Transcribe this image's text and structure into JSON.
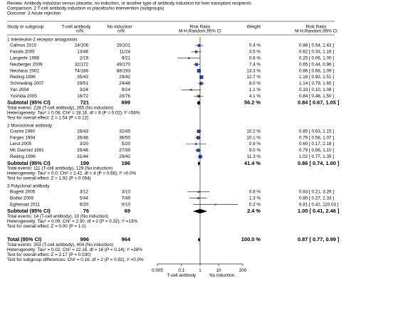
{
  "chart_data": {
    "type": "forest",
    "review": "Review:  Antibody induction versus placebo, no induction, or another type of antibody induction for liver transplant recipients",
    "comparison": "Comparison:  2 T-cell antibody induction vs placebo/no intervention (subgroups)",
    "outcome": "Outcome:  3 Acute rejection",
    "columns": {
      "study": "Study or subgroup",
      "group1": "T-cell antibody",
      "group1_sub": "n/N",
      "group2": "No induction",
      "group2_sub": "n/N",
      "effect": "Risk Ratio",
      "effect_sub": "M-H,Random,95% CI",
      "weight": "Weight",
      "effect2": "Risk Ratio",
      "effect2_sub": "M-H,Random,95% CI"
    },
    "subgroups": [
      {
        "name": "1 Interleukin-2 receptor antagonists",
        "studies": [
          {
            "name": "Calmus 2010",
            "t": "24/106",
            "c": "26/101",
            "weight": 5.4,
            "weight_label": "5.4 %",
            "rr": 0.88,
            "lo": 0.54,
            "hi": 1.43,
            "ci_label": "0.88 [ 0.54, 1.43 ]"
          },
          {
            "name": "Fasola 2005",
            "t": "13/46",
            "c": "11/24",
            "weight": 3.5,
            "weight_label": "3.5 %",
            "rr": 0.62,
            "lo": 0.33,
            "hi": 1.16,
            "ci_label": "0.62 [ 0.33, 1.16 ]"
          },
          {
            "name": "Langrehr 1998",
            "t": "2/19",
            "c": "9/21",
            "weight": 0.8,
            "weight_label": "0.8 %",
            "rr": 0.25,
            "lo": 0.06,
            "hi": 1.0,
            "ci_label": "0.25 [ 0.06, 1.00 ]"
          },
          {
            "name": "Neuberger 2009",
            "t": "32/172",
            "c": "49/170",
            "weight": 7.4,
            "weight_label": "7.4 %",
            "rr": 0.65,
            "lo": 0.44,
            "hi": 0.96,
            "ci_label": "0.65 [ 0.44, 0.96 ]"
          },
          {
            "name": "Neuhaus 2002",
            "t": "74/188",
            "c": "88/193",
            "weight": 13.3,
            "weight_label": "13.3 %",
            "rr": 0.86,
            "lo": 0.68,
            "hi": 1.09,
            "ci_label": "0.86 [ 0.68, 1.09 ]"
          },
          {
            "name": "Reding 1996",
            "t": "35/43",
            "c": "29/42",
            "weight": 12.7,
            "weight_label": "12.7 %",
            "rr": 1.18,
            "lo": 0.92,
            "hi": 1.51,
            "ci_label": "1.18 [ 0.92, 1.51 ]"
          },
          {
            "name": "Schmeding 2007",
            "t": "29/51",
            "c": "24/48",
            "weight": 8.0,
            "weight_label": "8.0 %",
            "rr": 1.14,
            "lo": 0.79,
            "hi": 1.65,
            "ci_label": "1.14 [ 0.79, 1.65 ]"
          },
          {
            "name": "Yan 2004",
            "t": "3/24",
            "c": "9/24",
            "weight": 1.1,
            "weight_label": "1.1 %",
            "rr": 0.33,
            "lo": 0.1,
            "hi": 1.08,
            "ci_label": "0.33 [ 0.10, 1.08 ]"
          },
          {
            "name": "Yoshida 2005",
            "t": "16/72",
            "c": "20/76",
            "weight": 4.1,
            "weight_label": "4.1 %",
            "rr": 0.84,
            "lo": 0.48,
            "hi": 1.5,
            "ci_label": "0.84 [ 0.48, 1.50 ]"
          }
        ],
        "subtotal": {
          "label": "Subtotal (95% CI)",
          "t_total": 721,
          "c_total": 699,
          "weight_label": "56.2 %",
          "rr": 0.84,
          "lo": 0.67,
          "hi": 1.05,
          "ci_label": "0.84 [ 0.67, 1.05 ]"
        },
        "notes": [
          "Total events: 228 (T-cell antibody), 265 (No induction)",
          "Heterogeneity: Tau² = 0.06; Chi² = 18.16, df = 8 (P = 0.02); I² =56%",
          "Test for overall effect: Z = 1.54 (P = 0.12)"
        ]
      },
      {
        "name": "2 Monoclonal antibody",
        "studies": [
          {
            "name": "Cosimi 1990",
            "t": "26/43",
            "c": "32/45",
            "weight": 10.2,
            "weight_label": "10.2 %",
            "rr": 0.85,
            "lo": 0.63,
            "hi": 1.15,
            "ci_label": "0.85 [ 0.63, 1.15 ]"
          },
          {
            "name": "Farges 1994",
            "t": "26/46",
            "c": "36/50",
            "weight": 10.1,
            "weight_label": "10.1 %",
            "rr": 0.79,
            "lo": 0.58,
            "hi": 1.07,
            "ci_label": "0.79 [ 0.58, 1.07 ]"
          },
          {
            "name": "Lerut 2005",
            "t": "3/20",
            "c": "5/20",
            "weight": 0.9,
            "weight_label": "0.9 %",
            "rr": 0.6,
            "lo": 0.17,
            "hi": 2.18,
            "ci_label": "0.60 [ 0.17, 2.18 ]"
          },
          {
            "name": "Mc Diarmid 1991",
            "t": "25/46",
            "c": "27/39",
            "weight": 9.0,
            "weight_label": "9.0 %",
            "rr": 0.79,
            "lo": 0.56,
            "hi": 1.1,
            "ci_label": "0.79 [ 0.56, 1.10 ]"
          },
          {
            "name": "Reding 1996",
            "t": "31/44",
            "c": "29/42",
            "weight": 11.3,
            "weight_label": "11.3 %",
            "rr": 1.02,
            "lo": 0.77,
            "hi": 1.35,
            "ci_label": "1.02 [ 0.77, 1.35 ]"
          }
        ],
        "subtotal": {
          "label": "Subtotal (95% CI)",
          "t_total": 199,
          "c_total": 196,
          "weight_label": "41.4 %",
          "rr": 0.86,
          "lo": 0.74,
          "hi": 1.0,
          "ci_label": "0.86 [ 0.74, 1.00 ]"
        },
        "notes": [
          "Total events: 111 (T-cell antibody), 129 (No induction)",
          "Heterogeneity: Tau² = 0.0; Chi² = 2.42, df = 4 (P = 0.66); I² =0.0%",
          "Test for overall effect: Z = 1.92 (P = 0.054)"
        ]
      },
      {
        "name": "3 Polyclonal antibody",
        "studies": [
          {
            "name": "Bogetti 2005",
            "t": "3/12",
            "c": "3/10",
            "weight": 0.8,
            "weight_label": "0.8 %",
            "rr": 0.83,
            "lo": 0.21,
            "hi": 3.26,
            "ci_label": "0.83 [ 0.21, 3.26 ]"
          },
          {
            "name": "Boillot 2009",
            "t": "5/44",
            "c": "7/49",
            "weight": 1.3,
            "weight_label": "1.3 %",
            "rr": 0.8,
            "lo": 0.27,
            "hi": 2.33,
            "ci_label": "0.80 [ 0.27, 2.33 ]"
          },
          {
            "name": "Eghtesad 2011",
            "t": "6/20",
            "c": "0/10",
            "weight": 0.2,
            "weight_label": "0.2 %",
            "rr": 6.81,
            "lo": 0.42,
            "hi": 110.03,
            "ci_label": "6.81 [ 0.42, 110.03 ]"
          }
        ],
        "subtotal": {
          "label": "Subtotal (95% CI)",
          "t_total": 76,
          "c_total": 69,
          "weight_label": "2.4 %",
          "rr": 1.0,
          "lo": 0.41,
          "hi": 2.46,
          "ci_label": "1.00 [ 0.41, 2.46 ]"
        },
        "notes": [
          "Total events: 14 (T-cell antibody), 10 (No induction)",
          "Heterogeneity: Tau² = 0.09; Chi² = 2.30, df = 2 (P = 0.32); I² =13%",
          "Test for overall effect: Z = 0.00 (P = 1.0)"
        ]
      }
    ],
    "overall": {
      "label": "Total (95% CI)",
      "t_total": 996,
      "c_total": 964,
      "weight_label": "100.0 %",
      "rr": 0.87,
      "lo": 0.77,
      "hi": 0.99,
      "ci_label": "0.87 [ 0.77, 0.99 ]",
      "notes": [
        "Total events: 353 (T-cell antibody), 404 (No induction)",
        "Heterogeneity: Tau² = 0.02; Chi² = 22.16, df = 16 (P = 0.14); I² =28%",
        "Test for overall effect: Z = 2.17 (P = 0.030)",
        "Test for subgroup differences: Chi² = 0.16, df = 2 (P = 0.92), I² =0.0%"
      ]
    },
    "xlim": [
      0.005,
      200
    ],
    "xticks": [
      0.005,
      0.1,
      1,
      10,
      200
    ],
    "log_x": true,
    "x_label_left": "T-cell antibody",
    "x_label_right": "No induction",
    "marker_color": "#2a3fb5",
    "diamond_color": "#000000"
  }
}
